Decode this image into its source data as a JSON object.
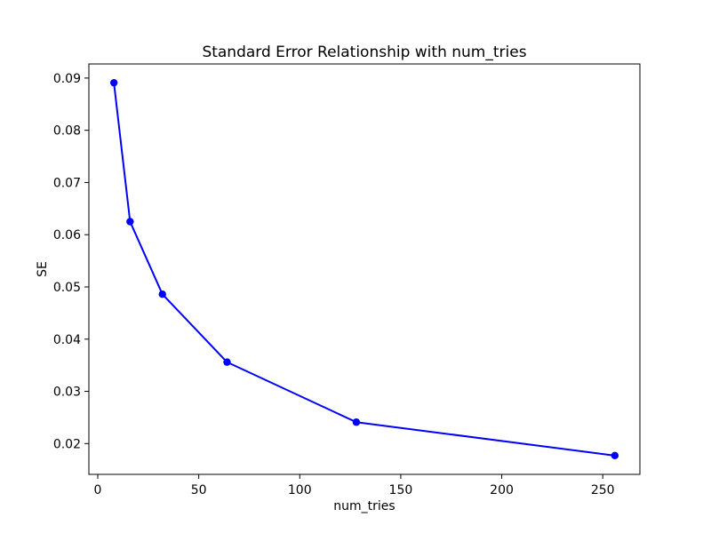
{
  "figure": {
    "background_color": "#ffffff"
  },
  "chart_data": {
    "type": "line",
    "title": "Standard Error Relationship with num_tries",
    "xlabel": "num_tries",
    "ylabel": "SE",
    "x": [
      8,
      16,
      32,
      64,
      128,
      256
    ],
    "y": [
      0.0891,
      0.0625,
      0.0486,
      0.0356,
      0.0241,
      0.0177
    ],
    "line_color": "#0000ff",
    "marker": "circle",
    "marker_color": "#0000ff",
    "xlim": [
      -4.4,
      268.4
    ],
    "ylim": [
      0.0141,
      0.0927
    ],
    "xticks": [
      0,
      50,
      100,
      150,
      200,
      250
    ],
    "xtick_labels": [
      "0",
      "50",
      "100",
      "150",
      "200",
      "250"
    ],
    "yticks": [
      0.02,
      0.03,
      0.04,
      0.05,
      0.06,
      0.07,
      0.08,
      0.09
    ],
    "ytick_labels": [
      "0.02",
      "0.03",
      "0.04",
      "0.05",
      "0.06",
      "0.07",
      "0.08",
      "0.09"
    ],
    "grid": false,
    "legend_position": "none",
    "axis_color": "#000000",
    "text_color": "#000000"
  }
}
